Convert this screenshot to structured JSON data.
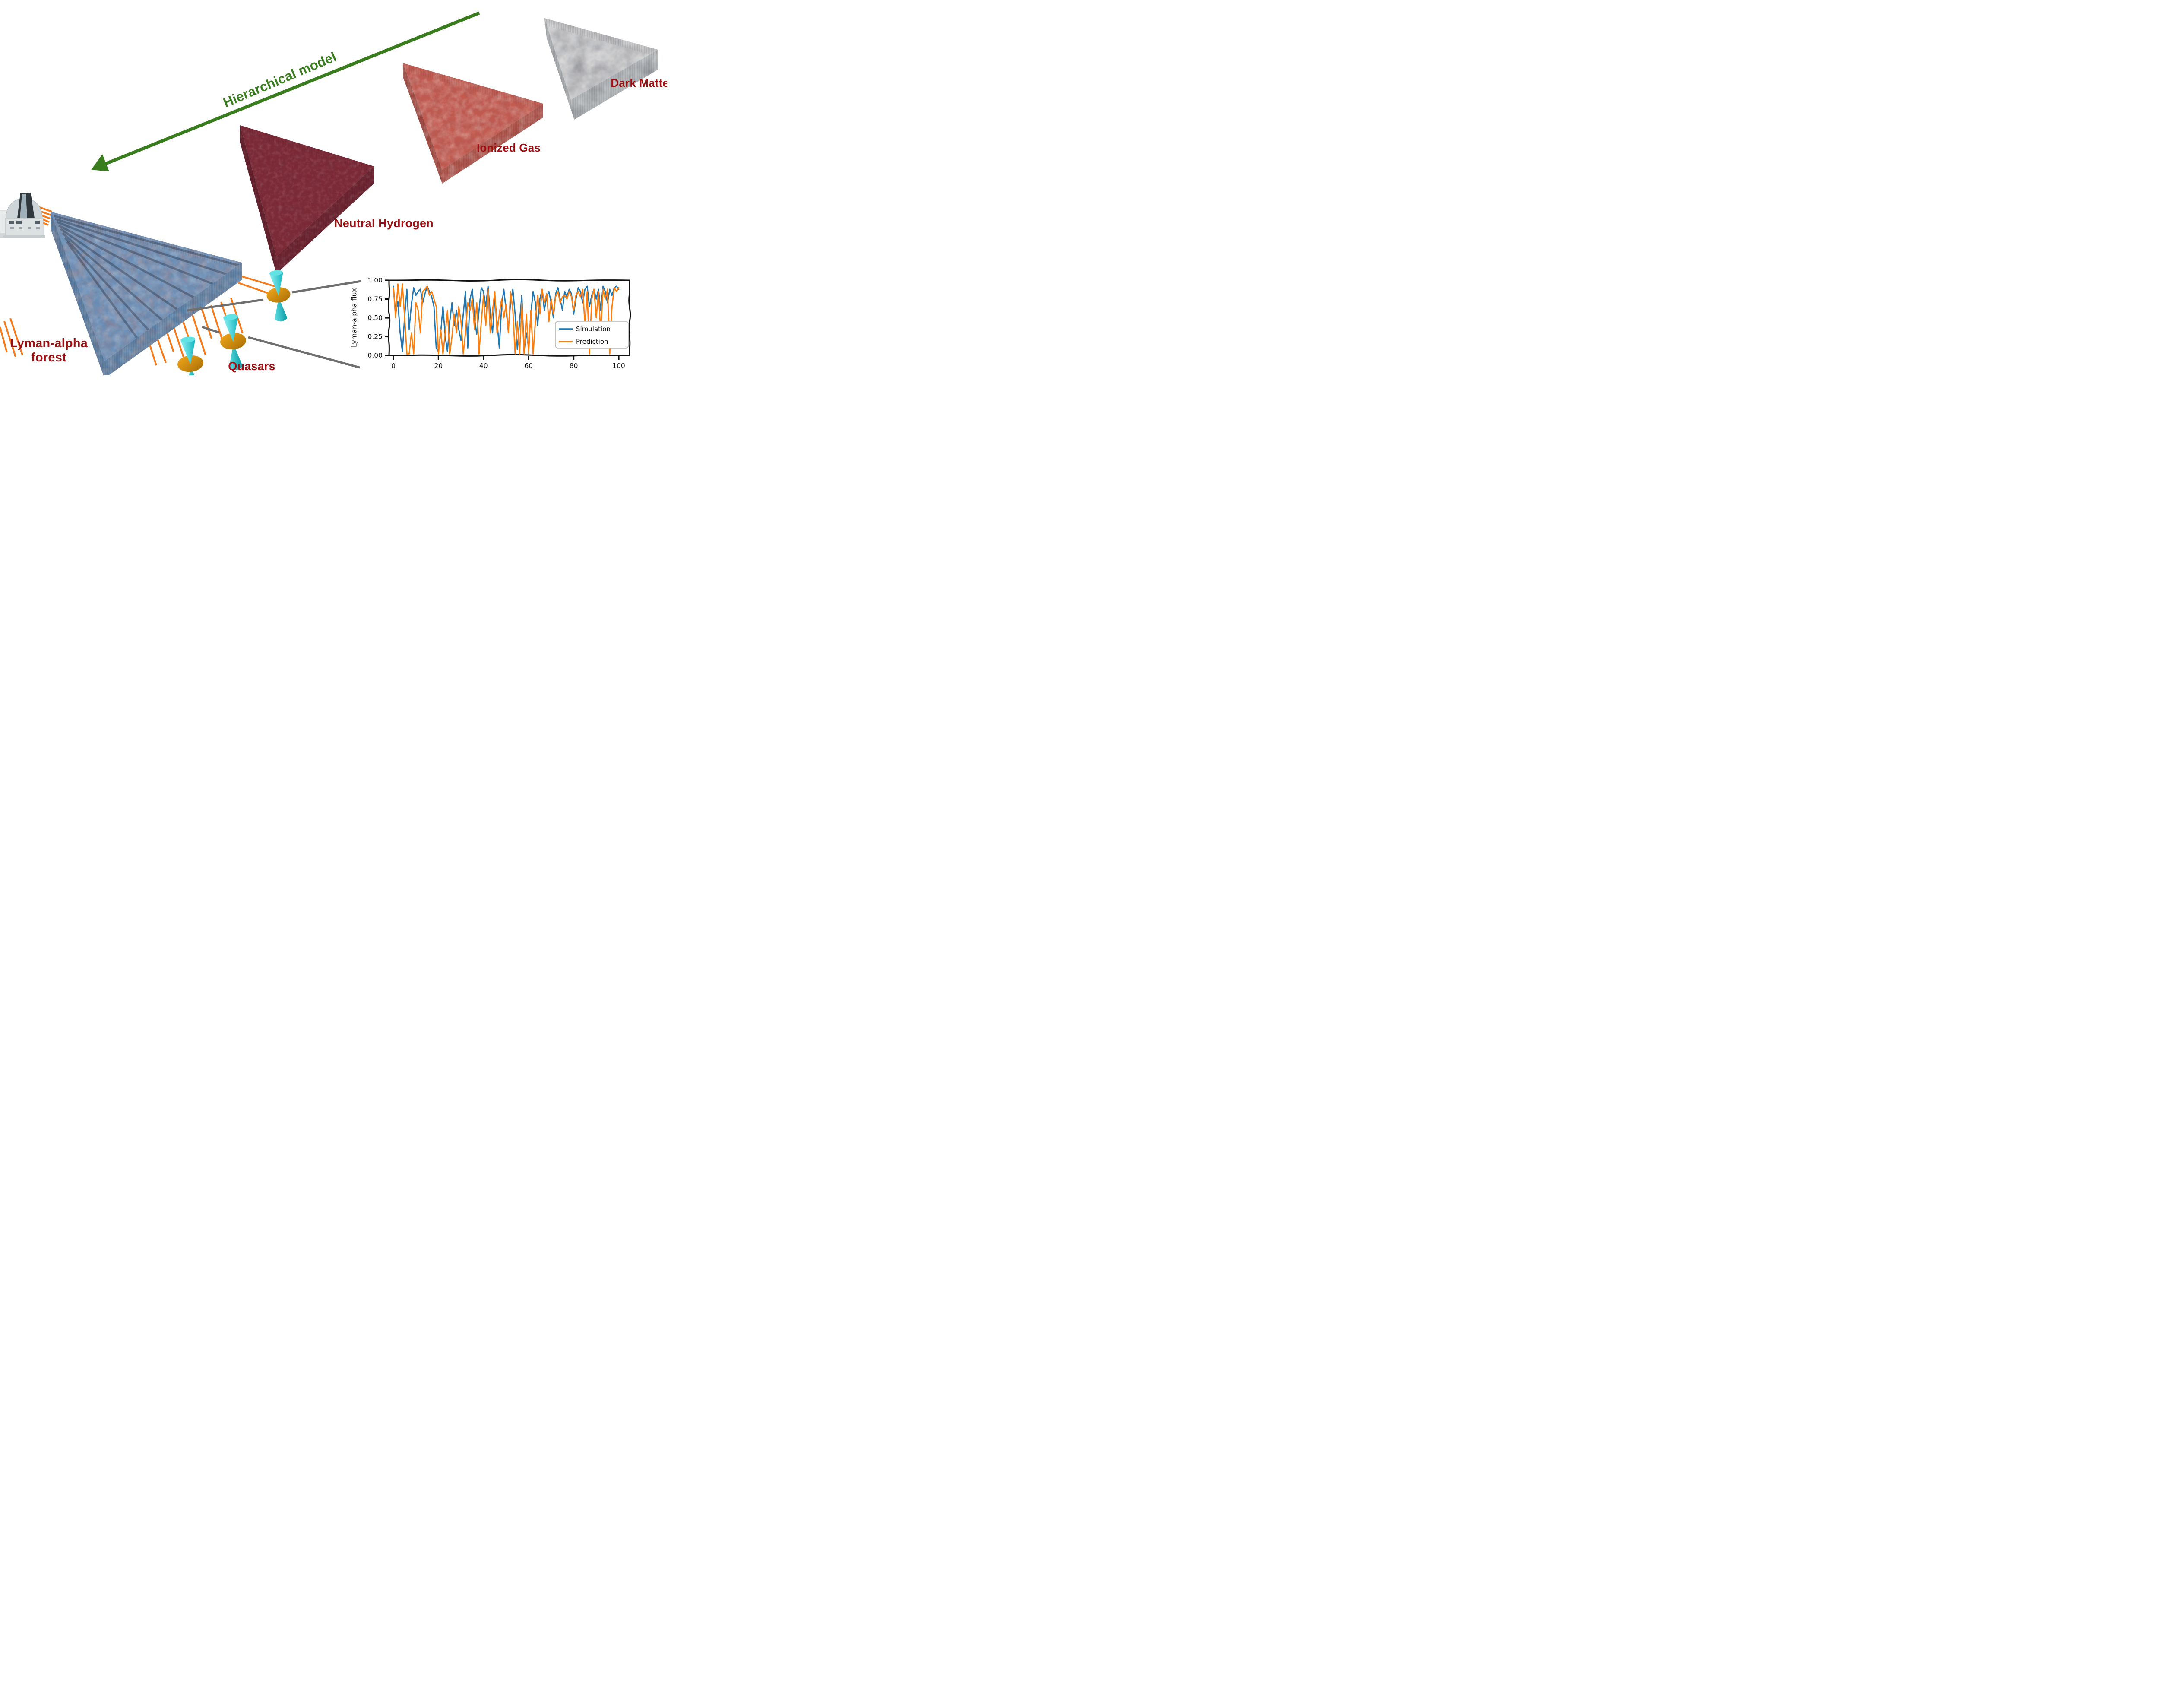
{
  "scene": {
    "arrow_label": "Hierarchical model",
    "labels": {
      "dark_matter": "Dark Matter",
      "ionized_gas": "Ionized Gas",
      "neutral_hydrogen": "Neutral Hydrogen",
      "lyman_alpha_forest": "Lyman-alpha forest",
      "quasars": "Quasars"
    },
    "colors": {
      "label_red": "#9b1113",
      "arrow_green": "#3a7d1f",
      "sightline_orange": "#f57b1c",
      "connector_gray": "#6f6f6f",
      "quasar_gold": "#d8930e",
      "quasar_jet_cyan": "#2fd4d8",
      "dark_matter_gray": "#d7d7d7",
      "ionized_gas_red": "#c25b50",
      "neutral_hydrogen_maroon": "#7c2936",
      "lyman_alpha_blue": "#6e92ba"
    }
  },
  "chart_data": {
    "type": "line",
    "title": "",
    "xlabel": "",
    "ylabel": "Lyman-alpha flux",
    "style": "xkcd-hand-drawn",
    "grid": false,
    "xlim": [
      0,
      100
    ],
    "ylim": [
      0.0,
      1.0
    ],
    "x_ticks": [
      0,
      20,
      40,
      60,
      80,
      100
    ],
    "y_ticks": [
      "0.00",
      "0.25",
      "0.50",
      "0.75",
      "1.00"
    ],
    "y_tick_values": [
      0,
      0.25,
      0.5,
      0.75,
      1.0
    ],
    "legend_position": "lower right",
    "legend": [
      "Simulation",
      "Prediction"
    ],
    "series": [
      {
        "name": "Simulation",
        "color": "#1f77b4",
        "x_start": 0,
        "x_step": 1,
        "values": [
          0.92,
          0.55,
          0.72,
          0.3,
          0.05,
          0.52,
          0.88,
          0.35,
          0.68,
          0.9,
          0.8,
          0.85,
          0.88,
          0.7,
          0.82,
          0.92,
          0.85,
          0.78,
          0.65,
          0.1,
          0.05,
          0.3,
          0.65,
          0.25,
          0.05,
          0.45,
          0.7,
          0.4,
          0.6,
          0.35,
          0.2,
          0.55,
          0.85,
          0.1,
          0.75,
          0.88,
          0.5,
          0.28,
          0.6,
          0.9,
          0.85,
          0.65,
          0.92,
          0.55,
          0.3,
          0.78,
          0.45,
          0.1,
          0.65,
          0.88,
          0.6,
          0.35,
          0.7,
          0.88,
          0.55,
          0.08,
          0.45,
          0.8,
          0.05,
          0.3,
          0.1,
          0.55,
          0.85,
          0.7,
          0.4,
          0.75,
          0.88,
          0.6,
          0.78,
          0.85,
          0.7,
          0.5,
          0.82,
          0.9,
          0.75,
          0.6,
          0.85,
          0.78,
          0.88,
          0.82,
          0.55,
          0.75,
          0.9,
          0.85,
          0.7,
          0.88,
          0.92,
          0.65,
          0.8,
          0.88,
          0.75,
          0.88,
          0.6,
          0.92,
          0.85,
          0.7,
          0.88,
          0.8,
          0.9,
          0.92,
          0.88
        ]
      },
      {
        "name": "Prediction",
        "color": "#ff7f0e",
        "x_start": 0,
        "x_step": 1,
        "values": [
          0.9,
          0.5,
          0.95,
          0.65,
          0.95,
          0.5,
          0.02,
          0.02,
          0.3,
          0.02,
          0.7,
          0.6,
          0.3,
          0.85,
          0.88,
          0.92,
          0.8,
          0.85,
          0.75,
          0.65,
          0.02,
          0.35,
          0.02,
          0.3,
          0.6,
          0.02,
          0.25,
          0.55,
          0.3,
          0.65,
          0.45,
          0.02,
          0.3,
          0.7,
          0.6,
          0.75,
          0.35,
          0.7,
          0.02,
          0.45,
          0.8,
          0.4,
          0.88,
          0.3,
          0.6,
          0.85,
          0.3,
          0.55,
          0.75,
          0.5,
          0.68,
          0.3,
          0.85,
          0.6,
          0.02,
          0.45,
          0.02,
          0.7,
          0.02,
          0.55,
          0.02,
          0.6,
          0.02,
          0.45,
          0.8,
          0.55,
          0.88,
          0.7,
          0.82,
          0.45,
          0.75,
          0.55,
          0.78,
          0.85,
          0.7,
          0.78,
          0.8,
          0.75,
          0.85,
          0.78,
          0.6,
          0.8,
          0.85,
          0.78,
          0.88,
          0.4,
          0.85,
          0.02,
          0.75,
          0.88,
          0.5,
          0.85,
          0.3,
          0.88,
          0.75,
          0.88,
          0.02,
          0.65,
          0.9,
          0.85,
          0.9
        ]
      }
    ]
  }
}
